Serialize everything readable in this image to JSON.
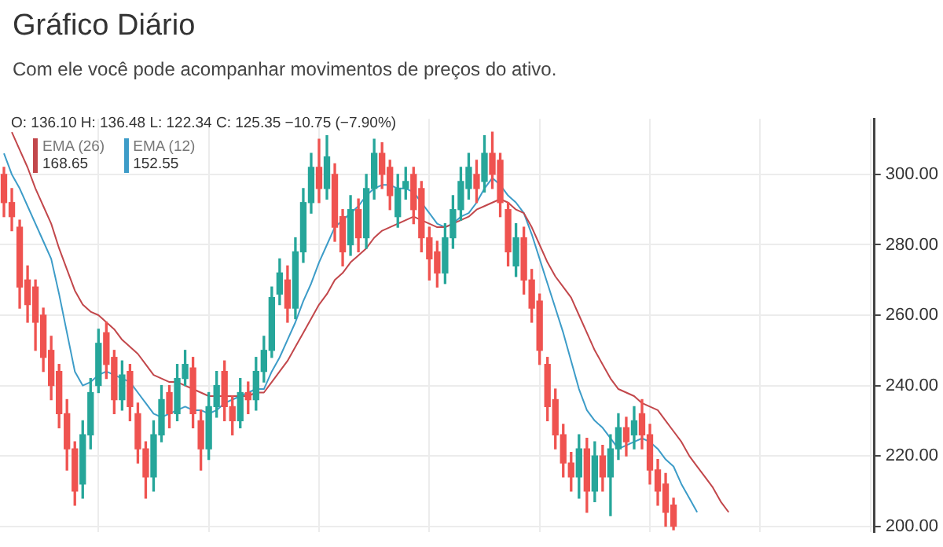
{
  "chart_data": {
    "type": "candlestick",
    "title": "Gráfico Diário",
    "subtitle": "Com ele você pode acompanhar movimentos de preços do ativo.",
    "annotations": [
      "O: 136.10 H: 136.48 L: 122.34 C: 125.35 −10.75 (−7.90%)",
      "168.65",
      "152.55"
    ],
    "categories": [
      null,
      null,
      null,
      null,
      null,
      null,
      null,
      null,
      null,
      null,
      null,
      null,
      null,
      null,
      null,
      null,
      null,
      null,
      null,
      null,
      null,
      null,
      null,
      null,
      null,
      null,
      null,
      null,
      null,
      null,
      null,
      null,
      null,
      null,
      null,
      null,
      null,
      null,
      null,
      null,
      null,
      null,
      null,
      null,
      null,
      null,
      null,
      null,
      null,
      null,
      null,
      null,
      null,
      null,
      null,
      null,
      null,
      null,
      null,
      null,
      null,
      null,
      null,
      null,
      null,
      null,
      null,
      null,
      null,
      null,
      null,
      null,
      null,
      null,
      null,
      null,
      null,
      null,
      null,
      null,
      null,
      null,
      null,
      null,
      null,
      null,
      null,
      null,
      null,
      null,
      null,
      null,
      null,
      null,
      null,
      null,
      null,
      null,
      null,
      null,
      null,
      null,
      null,
      null,
      null,
      null,
      null,
      null,
      null,
      null,
      null
    ],
    "ohlc": [
      [
        300,
        302,
        288,
        292
      ],
      [
        292,
        296,
        284,
        288
      ],
      [
        285,
        287,
        262,
        268
      ],
      [
        270,
        274,
        258,
        263
      ],
      [
        268,
        270,
        250,
        258
      ],
      [
        260,
        262,
        244,
        248
      ],
      [
        250,
        254,
        236,
        240
      ],
      [
        244,
        246,
        228,
        232
      ],
      [
        232,
        236,
        216,
        222
      ],
      [
        222,
        224,
        206,
        210
      ],
      [
        212,
        230,
        208,
        226
      ],
      [
        226,
        242,
        222,
        238
      ],
      [
        240,
        256,
        238,
        252
      ],
      [
        255,
        258,
        242,
        246
      ],
      [
        248,
        250,
        232,
        236
      ],
      [
        236,
        247,
        233,
        243
      ],
      [
        244,
        246,
        230,
        234
      ],
      [
        232,
        235,
        218,
        222
      ],
      [
        222,
        224,
        208,
        214
      ],
      [
        214,
        230,
        210,
        226
      ],
      [
        226,
        240,
        224,
        236
      ],
      [
        238,
        240,
        228,
        232
      ],
      [
        232,
        246,
        230,
        242
      ],
      [
        242,
        250,
        240,
        246
      ],
      [
        245,
        248,
        228,
        232
      ],
      [
        230,
        233,
        216,
        222
      ],
      [
        222,
        238,
        219,
        234
      ],
      [
        234,
        244,
        231,
        240
      ],
      [
        244,
        247,
        230,
        234
      ],
      [
        234,
        237,
        226,
        230
      ],
      [
        230,
        242,
        228,
        238
      ],
      [
        238,
        241,
        232,
        236
      ],
      [
        236,
        248,
        233,
        244
      ],
      [
        244,
        254,
        241,
        250
      ],
      [
        250,
        268,
        248,
        265
      ],
      [
        266,
        276,
        263,
        272
      ],
      [
        270,
        274,
        258,
        262
      ],
      [
        262,
        282,
        259,
        278
      ],
      [
        278,
        296,
        275,
        292
      ],
      [
        292,
        306,
        289,
        302
      ],
      [
        302,
        310,
        292,
        296
      ],
      [
        296,
        311,
        293,
        305
      ],
      [
        300,
        303,
        281,
        285
      ],
      [
        288,
        290,
        274,
        278
      ],
      [
        280,
        294,
        277,
        290
      ],
      [
        290,
        293,
        278,
        282
      ],
      [
        282,
        300,
        279,
        296
      ],
      [
        296,
        310,
        293,
        306
      ],
      [
        306,
        309,
        296,
        300
      ],
      [
        302,
        304,
        290,
        294
      ],
      [
        288,
        300,
        285,
        296
      ],
      [
        296,
        302,
        293,
        298
      ],
      [
        300,
        302,
        286,
        290
      ],
      [
        296,
        298,
        278,
        282
      ],
      [
        282,
        285,
        270,
        276
      ],
      [
        278,
        281,
        268,
        272
      ],
      [
        272,
        286,
        269,
        282
      ],
      [
        282,
        294,
        279,
        290
      ],
      [
        290,
        302,
        287,
        298
      ],
      [
        296,
        306,
        293,
        302
      ],
      [
        300,
        304,
        292,
        296
      ],
      [
        298,
        311,
        295,
        306
      ],
      [
        306,
        312,
        296,
        300
      ],
      [
        304,
        306,
        288,
        292
      ],
      [
        290,
        292,
        274,
        278
      ],
      [
        274,
        286,
        271,
        282
      ],
      [
        282,
        285,
        266,
        270
      ],
      [
        270,
        273,
        258,
        262
      ],
      [
        264,
        266,
        246,
        250
      ],
      [
        246,
        248,
        230,
        234
      ],
      [
        236,
        239,
        222,
        226
      ],
      [
        226,
        229,
        214,
        218
      ],
      [
        218,
        221,
        210,
        214
      ],
      [
        214,
        226,
        208,
        222
      ],
      [
        222,
        225,
        204,
        210
      ],
      [
        210,
        224,
        207,
        220
      ],
      [
        220,
        223,
        210,
        214
      ],
      [
        214,
        226,
        203,
        222
      ],
      [
        222,
        232,
        219,
        228
      ],
      [
        228,
        231,
        220,
        224
      ],
      [
        226,
        234,
        222,
        230
      ],
      [
        232,
        236,
        222,
        226
      ],
      [
        226,
        229,
        212,
        216
      ],
      [
        216,
        219,
        206,
        210
      ],
      [
        212,
        215,
        200,
        204
      ],
      [
        206,
        208,
        199,
        200
      ],
      null,
      null,
      null,
      null,
      null,
      null,
      null,
      null,
      null,
      null,
      null,
      null,
      null,
      null,
      null,
      null,
      null,
      null,
      null,
      null,
      null,
      null,
      null,
      null,
      null
    ],
    "series": [
      {
        "name": "EMA (26)",
        "type": "line",
        "color": "#c2474b",
        "values": [
          null,
          312,
          307,
          302,
          296,
          291,
          286,
          279,
          273,
          267,
          263,
          261,
          260,
          258,
          256,
          253,
          251,
          249,
          246,
          243,
          242,
          241,
          241,
          240,
          239,
          238,
          237,
          237,
          237,
          237,
          237,
          237,
          238,
          238,
          241,
          244,
          247,
          251,
          255,
          259,
          263,
          266,
          270,
          272,
          275,
          277,
          279,
          282,
          284,
          285,
          286,
          287,
          288,
          287,
          286,
          285,
          285,
          286,
          287,
          288,
          290,
          291,
          292,
          293,
          292,
          290,
          289,
          285,
          280,
          275,
          271,
          268,
          265,
          260,
          255,
          250,
          246,
          242,
          239,
          238,
          237,
          235,
          234,
          233,
          230,
          227,
          224,
          220,
          217,
          214,
          211,
          207,
          204,
          null,
          null,
          null,
          null,
          null,
          null,
          null,
          null,
          null,
          null,
          null,
          null,
          null,
          null,
          null,
          null,
          null,
          null
        ]
      },
      {
        "name": "EMA (12)",
        "type": "line",
        "color": "#3d9cc8",
        "values": [
          306,
          300,
          296,
          291,
          286,
          281,
          276,
          266,
          255,
          244,
          240,
          241,
          243,
          244,
          243,
          242,
          241,
          238,
          235,
          232,
          231,
          232,
          233,
          234,
          233,
          233,
          232,
          233,
          235,
          236,
          237,
          238,
          239,
          239,
          244,
          248,
          253,
          258,
          264,
          269,
          275,
          280,
          285,
          287,
          289,
          291,
          294,
          296,
          297,
          297,
          296,
          296,
          295,
          292,
          289,
          286,
          285,
          286,
          288,
          289,
          292,
          296,
          299,
          297,
          294,
          292,
          289,
          283,
          276,
          269,
          262,
          255,
          247,
          239,
          233,
          230,
          228,
          225,
          222,
          223,
          224,
          225,
          224,
          222,
          219,
          217,
          212,
          208,
          204,
          null,
          null,
          null,
          null,
          null,
          null,
          null,
          null,
          null,
          null,
          null,
          null,
          null,
          null,
          null,
          null,
          null,
          null,
          null,
          null,
          null,
          null
        ]
      }
    ],
    "ylim": [
      198.4,
      315.8
    ],
    "yticks": [
      {
        "value": 200,
        "label": "200.00"
      },
      {
        "value": 220,
        "label": "220.00"
      },
      {
        "value": 240,
        "label": "240.00"
      },
      {
        "value": 260,
        "label": "260.00"
      },
      {
        "value": 280,
        "label": "280.00"
      },
      {
        "value": 300,
        "label": "300.00"
      }
    ],
    "grid": true,
    "legend": "top left",
    "tick_labels": "y",
    "marker": "none",
    "line_style": "solid"
  }
}
